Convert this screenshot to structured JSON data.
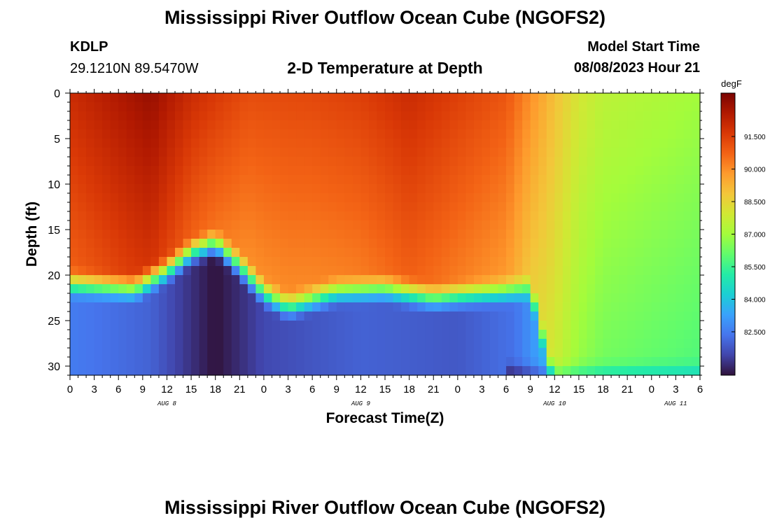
{
  "header": {
    "title": "Mississippi River Outflow Ocean Cube (NGOFS2)",
    "station_id": "KDLP",
    "coordinates": "29.1210N  89.5470W",
    "subtitle": "2-D Temperature at Depth",
    "model_start_label": "Model Start Time",
    "model_start_value": "08/08/2023 Hour 21"
  },
  "footer": {
    "title": "Mississippi River Outflow Ocean Cube (NGOFS2)"
  },
  "colors": {
    "colormap": [
      "#30123b",
      "#4145ab",
      "#4675ed",
      "#39a2fc",
      "#1bcfd4",
      "#24eca6",
      "#61fc6c",
      "#a4fc3b",
      "#d1e834",
      "#f3c63a",
      "#fe9b2d",
      "#f36315",
      "#d93806",
      "#b11901",
      "#7a0402"
    ]
  },
  "chart_data": {
    "type": "heatmap",
    "title": "2-D Temperature at Depth",
    "xlabel": "Forecast Time(Z)",
    "ylabel": "Depth (ft)",
    "x_tick_labels": [
      "0",
      "3",
      "6",
      "9",
      "12",
      "15",
      "18",
      "21",
      "0",
      "3",
      "6",
      "9",
      "12",
      "15",
      "18",
      "21",
      "0",
      "3",
      "6",
      "9",
      "12",
      "15",
      "18",
      "21",
      "0",
      "3",
      "6"
    ],
    "x_day_labels": [
      {
        "label": "AUG 8",
        "hour": 12
      },
      {
        "label": "AUG 9",
        "hour": 36
      },
      {
        "label": "AUG 10",
        "hour": 60
      },
      {
        "label": "AUG 11",
        "hour": 75
      }
    ],
    "xlim": [
      0,
      78
    ],
    "ylim": [
      31,
      0
    ],
    "y_ticks": [
      0,
      5,
      10,
      15,
      20,
      25,
      30
    ],
    "colorbar": {
      "unit": "degF",
      "range": [
        80.5,
        93.5
      ],
      "tick_labels": [
        "91.500",
        "90.000",
        "88.500",
        "87.000",
        "85.500",
        "84.000",
        "82.500"
      ],
      "tick_values": [
        91.5,
        90.0,
        88.5,
        87.0,
        85.5,
        84.0,
        82.5
      ]
    },
    "grid": {
      "time_step_hours": 1,
      "depth_step_ft": 1
    },
    "model": {
      "surface_temp_control": [
        [
          0,
          92.0
        ],
        [
          5,
          92.5
        ],
        [
          10,
          93.0
        ],
        [
          15,
          92.0
        ],
        [
          22,
          91.2
        ],
        [
          30,
          91.3
        ],
        [
          36,
          91.5
        ],
        [
          42,
          92.0
        ],
        [
          48,
          91.5
        ],
        [
          54,
          91.0
        ],
        [
          57,
          90.0
        ],
        [
          60,
          89.0
        ],
        [
          63,
          88.0
        ],
        [
          66,
          87.5
        ],
        [
          78,
          87.0
        ]
      ],
      "mixed_layer_depth_control": [
        [
          0,
          19.0
        ],
        [
          8,
          19.5
        ],
        [
          12,
          17.5
        ],
        [
          15,
          15.5
        ],
        [
          18,
          14.5
        ],
        [
          21,
          17.0
        ],
        [
          24,
          20.0
        ],
        [
          27,
          21.5
        ],
        [
          33,
          19.8
        ],
        [
          39,
          19.5
        ],
        [
          45,
          20.5
        ],
        [
          51,
          20.0
        ],
        [
          57,
          19.5
        ],
        [
          60,
          30.0
        ],
        [
          78,
          30.0
        ]
      ],
      "bottom_temp_control": [
        [
          0,
          82.5
        ],
        [
          10,
          82.0
        ],
        [
          18,
          80.5
        ],
        [
          24,
          81.5
        ],
        [
          36,
          82.0
        ],
        [
          48,
          81.8
        ],
        [
          55,
          82.3
        ],
        [
          58,
          83.3
        ],
        [
          60,
          84.5
        ],
        [
          62,
          85.8
        ],
        [
          64,
          86.5
        ],
        [
          78,
          87.0
        ]
      ],
      "thermocline_thickness_ft": 4.0,
      "mixed_layer_warm_decay_degF": 1.2,
      "near_bottom_warm_patch": {
        "start_hour": 54,
        "end_hour": 78,
        "offset_degF": -1.2
      }
    }
  }
}
